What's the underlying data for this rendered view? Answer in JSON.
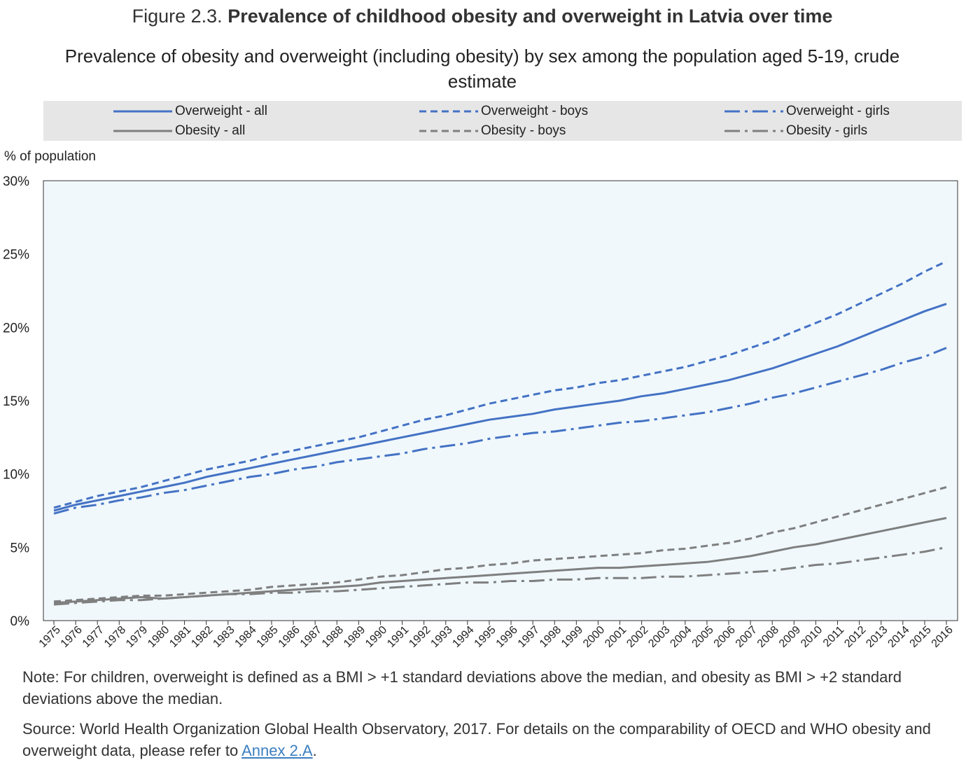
{
  "figure": {
    "prefix": "Figure 2.3.",
    "title": "Prevalence of childhood obesity and overweight in Latvia over time",
    "subtitle": "Prevalence of obesity and overweight (including obesity) by sex among the population aged 5-19, crude estimate"
  },
  "colors": {
    "blue": "#4472c4",
    "grey": "#7f7f7f",
    "plot_bg": "#f0f8fc",
    "legend_bg": "#e6e6e6"
  },
  "legend": [
    {
      "label": "Overweight - all",
      "color": "#4472c4",
      "dash": "solid"
    },
    {
      "label": "Overweight - boys",
      "color": "#4472c4",
      "dash": "dashed"
    },
    {
      "label": "Overweight - girls",
      "color": "#4472c4",
      "dash": "dashdot"
    },
    {
      "label": "Obesity - all",
      "color": "#7f7f7f",
      "dash": "solid"
    },
    {
      "label": "Obesity - boys",
      "color": "#7f7f7f",
      "dash": "dashed"
    },
    {
      "label": "Obesity - girls",
      "color": "#7f7f7f",
      "dash": "dashdot"
    }
  ],
  "chart_data": {
    "type": "line",
    "ylabel": "% of population",
    "ylim": [
      0,
      30
    ],
    "yticks": [
      0,
      5,
      10,
      15,
      20,
      25,
      30
    ],
    "ytick_labels": [
      "0%",
      "5%",
      "10%",
      "15%",
      "20%",
      "25%",
      "30%"
    ],
    "grid": false,
    "legend_position": "top",
    "x": [
      "1975",
      "1976",
      "1977",
      "1978",
      "1979",
      "1980",
      "1981",
      "1982",
      "1983",
      "1984",
      "1985",
      "1986",
      "1987",
      "1988",
      "1989",
      "1990",
      "1991",
      "1992",
      "1993",
      "1994",
      "1995",
      "1996",
      "1997",
      "1998",
      "1999",
      "2000",
      "2001",
      "2002",
      "2003",
      "2004",
      "2005",
      "2006",
      "2007",
      "2008",
      "2009",
      "2010",
      "2011",
      "2012",
      "2013",
      "2014",
      "2015",
      "2016"
    ],
    "series": [
      {
        "name": "Overweight - all",
        "color": "#4472c4",
        "dash": "solid",
        "values": [
          7.5,
          7.9,
          8.2,
          8.5,
          8.8,
          9.1,
          9.4,
          9.8,
          10.1,
          10.4,
          10.7,
          11.0,
          11.3,
          11.6,
          11.9,
          12.2,
          12.5,
          12.8,
          13.1,
          13.4,
          13.7,
          13.9,
          14.1,
          14.4,
          14.6,
          14.8,
          15.0,
          15.3,
          15.5,
          15.8,
          16.1,
          16.4,
          16.8,
          17.2,
          17.7,
          18.2,
          18.7,
          19.3,
          19.9,
          20.5,
          21.1,
          21.6
        ]
      },
      {
        "name": "Overweight - boys",
        "color": "#4472c4",
        "dash": "dashed",
        "values": [
          7.7,
          8.1,
          8.5,
          8.8,
          9.1,
          9.5,
          9.9,
          10.3,
          10.6,
          10.9,
          11.3,
          11.6,
          11.9,
          12.2,
          12.5,
          12.9,
          13.3,
          13.7,
          14.0,
          14.4,
          14.8,
          15.1,
          15.4,
          15.7,
          15.9,
          16.2,
          16.4,
          16.7,
          17.0,
          17.3,
          17.7,
          18.1,
          18.6,
          19.1,
          19.7,
          20.3,
          20.9,
          21.6,
          22.3,
          23.0,
          23.8,
          24.5
        ]
      },
      {
        "name": "Overweight - girls",
        "color": "#4472c4",
        "dash": "dashdot",
        "values": [
          7.3,
          7.7,
          7.9,
          8.2,
          8.4,
          8.7,
          8.9,
          9.2,
          9.5,
          9.8,
          10.0,
          10.3,
          10.5,
          10.8,
          11.0,
          11.2,
          11.4,
          11.7,
          11.9,
          12.1,
          12.4,
          12.6,
          12.8,
          12.9,
          13.1,
          13.3,
          13.5,
          13.6,
          13.8,
          14.0,
          14.2,
          14.5,
          14.8,
          15.2,
          15.5,
          15.9,
          16.3,
          16.7,
          17.1,
          17.6,
          18.0,
          18.6
        ]
      },
      {
        "name": "Obesity - all",
        "color": "#7f7f7f",
        "dash": "solid",
        "values": [
          1.2,
          1.3,
          1.4,
          1.5,
          1.6,
          1.5,
          1.6,
          1.7,
          1.8,
          1.9,
          2.0,
          2.1,
          2.2,
          2.3,
          2.4,
          2.6,
          2.7,
          2.8,
          2.9,
          3.0,
          3.1,
          3.2,
          3.3,
          3.4,
          3.5,
          3.6,
          3.6,
          3.7,
          3.8,
          3.9,
          4.0,
          4.2,
          4.4,
          4.7,
          5.0,
          5.2,
          5.5,
          5.8,
          6.1,
          6.4,
          6.7,
          7.0
        ]
      },
      {
        "name": "Obesity - boys",
        "color": "#7f7f7f",
        "dash": "dashed",
        "values": [
          1.3,
          1.4,
          1.5,
          1.6,
          1.7,
          1.7,
          1.8,
          1.9,
          2.0,
          2.1,
          2.3,
          2.4,
          2.5,
          2.6,
          2.8,
          3.0,
          3.1,
          3.3,
          3.5,
          3.6,
          3.8,
          3.9,
          4.1,
          4.2,
          4.3,
          4.4,
          4.5,
          4.6,
          4.8,
          4.9,
          5.1,
          5.3,
          5.6,
          6.0,
          6.3,
          6.7,
          7.1,
          7.5,
          7.9,
          8.3,
          8.7,
          9.1
        ]
      },
      {
        "name": "Obesity - girls",
        "color": "#7f7f7f",
        "dash": "dashdot",
        "values": [
          1.1,
          1.2,
          1.3,
          1.4,
          1.4,
          1.5,
          1.6,
          1.7,
          1.8,
          1.8,
          1.9,
          1.9,
          2.0,
          2.0,
          2.1,
          2.2,
          2.3,
          2.4,
          2.5,
          2.6,
          2.6,
          2.7,
          2.7,
          2.8,
          2.8,
          2.9,
          2.9,
          2.9,
          3.0,
          3.0,
          3.1,
          3.2,
          3.3,
          3.4,
          3.6,
          3.8,
          3.9,
          4.1,
          4.3,
          4.5,
          4.7,
          5.0
        ]
      }
    ]
  },
  "notes": {
    "note": "Note: For children, overweight is defined as a BMI > +1 standard deviations above the median, and obesity as BMI > +2 standard deviations above the median.",
    "source": "Source: World Health Organization Global Health Observatory, 2017. For details on the comparability of OECD and WHO obesity and overweight data, please refer to ",
    "source_link": "Annex 2.A",
    "source_end": "."
  }
}
